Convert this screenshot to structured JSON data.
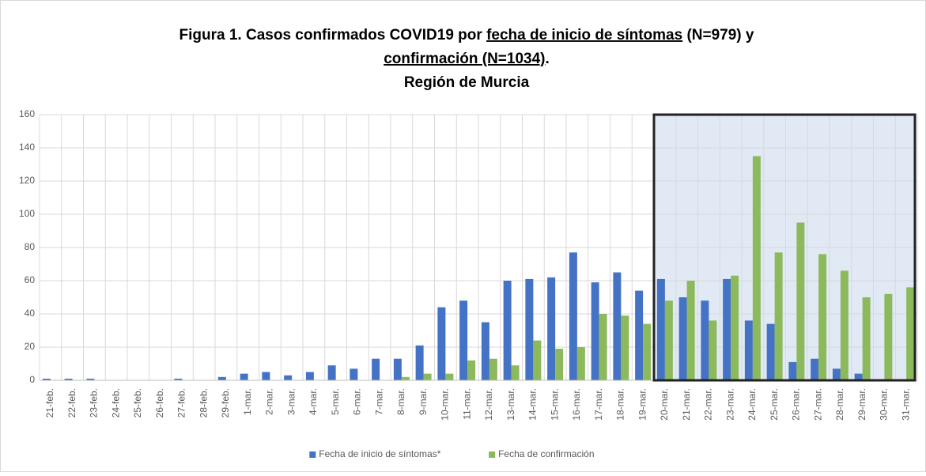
{
  "chart_data": {
    "type": "bar",
    "title_lines": [
      [
        {
          "text": "Figura 1. Casos confirmados COVID19 por ",
          "underline": false
        },
        {
          "text": "fecha de inicio de síntomas",
          "underline": true
        },
        {
          "text": " (N=979) y",
          "underline": false
        }
      ],
      [
        {
          "text": "confirmación (N=1034)",
          "underline": true
        },
        {
          "text": ".",
          "underline": false
        }
      ],
      [
        {
          "text": "Región de Murcia",
          "underline": false
        }
      ]
    ],
    "categories": [
      "21-feb.",
      "22-feb.",
      "23-feb.",
      "24-feb.",
      "25-feb.",
      "26-feb.",
      "27-feb.",
      "28-feb.",
      "29-feb.",
      "1-mar.",
      "2-mar.",
      "3-mar.",
      "4-mar.",
      "5-mar.",
      "6-mar.",
      "7-mar.",
      "8-mar.",
      "9-mar.",
      "10-mar.",
      "11-mar.",
      "12-mar.",
      "13-mar.",
      "14-mar.",
      "15-mar.",
      "16-mar.",
      "17-mar.",
      "18-mar.",
      "19-mar.",
      "20-mar.",
      "21-mar.",
      "22-mar.",
      "23-mar.",
      "24-mar.",
      "25-mar.",
      "26-mar.",
      "27-mar.",
      "28-mar.",
      "29-mar.",
      "30-mar.",
      "31-mar."
    ],
    "series": [
      {
        "name": "Fecha de inicio de síntomas*",
        "color": "#4472c4",
        "values": [
          1,
          1,
          1,
          0,
          0,
          0,
          1,
          0,
          2,
          4,
          5,
          3,
          5,
          9,
          7,
          13,
          13,
          21,
          44,
          48,
          35,
          60,
          61,
          62,
          77,
          59,
          65,
          54,
          61,
          50,
          48,
          61,
          36,
          34,
          11,
          13,
          7,
          4,
          0,
          0
        ]
      },
      {
        "name": "Fecha de confirmación",
        "color": "#8cb95c",
        "values": [
          0,
          0,
          0,
          0,
          0,
          0,
          0,
          0,
          0,
          0,
          0,
          0,
          0,
          0,
          0,
          0,
          2,
          4,
          4,
          12,
          13,
          9,
          24,
          19,
          20,
          40,
          39,
          34,
          48,
          60,
          36,
          63,
          135,
          77,
          95,
          76,
          66,
          50,
          52,
          56
        ]
      }
    ],
    "ylim": [
      0,
      160
    ],
    "yticks": [
      0,
      20,
      40,
      60,
      80,
      100,
      120,
      140,
      160
    ],
    "grid": true,
    "legend": "bottom",
    "highlight_from": "20-mar.",
    "highlight_to": "31-mar."
  }
}
